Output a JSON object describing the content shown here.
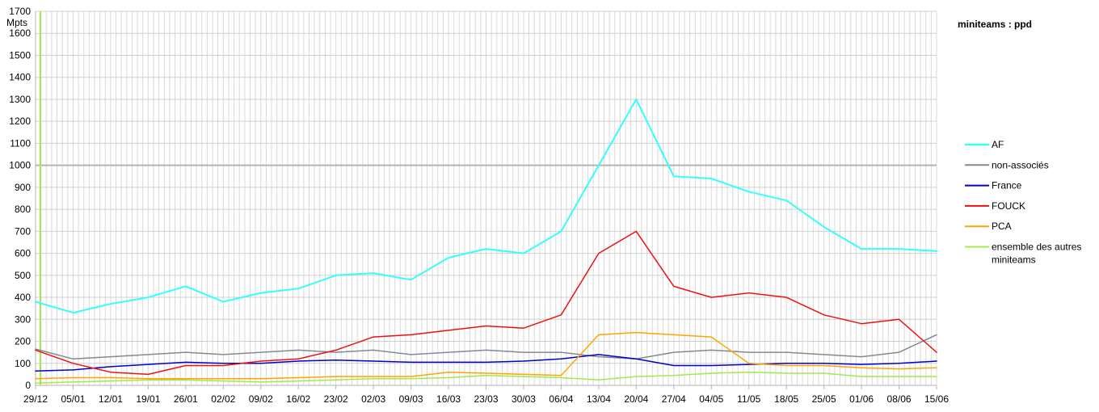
{
  "chart_data": {
    "type": "line",
    "title": "miniteams : ppd",
    "ylabel": "Mpts",
    "ylim": [
      0,
      1700
    ],
    "yticks": [
      0,
      100,
      200,
      300,
      400,
      500,
      600,
      700,
      800,
      900,
      1000,
      1100,
      1200,
      1300,
      1400,
      1500,
      1600,
      1700
    ],
    "x_tick_labels": [
      "29/12",
      "05/01",
      "12/01",
      "19/01",
      "26/01",
      "02/02",
      "09/02",
      "16/02",
      "23/02",
      "02/03",
      "09/03",
      "16/03",
      "23/03",
      "30/03",
      "06/04",
      "13/04",
      "20/04",
      "27/04",
      "04/05",
      "11/05",
      "18/05",
      "25/05",
      "01/06",
      "08/06",
      "15/06"
    ],
    "grid": true,
    "legend_position": "right",
    "reference_line_y": 1000,
    "series": [
      {
        "name": "AF",
        "color": "#33ffff",
        "width": 2,
        "weekly": [
          380,
          330,
          370,
          400,
          450,
          380,
          420,
          440,
          500,
          510,
          480,
          580,
          620,
          600,
          700,
          1000,
          1300,
          950,
          940,
          880,
          840,
          720,
          620,
          620,
          610
        ]
      },
      {
        "name": "non-associés",
        "color": "#808a94",
        "width": 1.5,
        "weekly": [
          165,
          120,
          130,
          140,
          150,
          140,
          150,
          160,
          150,
          160,
          140,
          150,
          160,
          150,
          150,
          130,
          120,
          150,
          160,
          150,
          150,
          140,
          130,
          150,
          230
        ]
      },
      {
        "name": "France",
        "color": "#0000cc",
        "width": 1.5,
        "weekly": [
          65,
          70,
          85,
          95,
          105,
          100,
          100,
          110,
          115,
          110,
          105,
          105,
          105,
          110,
          120,
          140,
          120,
          90,
          90,
          95,
          100,
          100,
          95,
          100,
          110
        ]
      },
      {
        "name": "FOUCK",
        "color": "#ee1111",
        "width": 1.5,
        "weekly": [
          160,
          100,
          60,
          50,
          90,
          90,
          110,
          120,
          160,
          220,
          230,
          250,
          270,
          260,
          320,
          600,
          700,
          450,
          400,
          420,
          400,
          320,
          280,
          300,
          150
        ]
      },
      {
        "name": "PCA",
        "color": "#ffa500",
        "width": 1.5,
        "weekly": [
          30,
          35,
          35,
          30,
          30,
          30,
          30,
          35,
          40,
          40,
          40,
          60,
          55,
          50,
          45,
          230,
          240,
          230,
          220,
          100,
          90,
          90,
          80,
          75,
          80
        ]
      },
      {
        "name": "ensemble des autres miniteams",
        "color": "#a4e84a",
        "width": 1.5,
        "weekly": [
          10,
          15,
          20,
          25,
          25,
          20,
          15,
          20,
          25,
          30,
          30,
          35,
          45,
          40,
          35,
          25,
          40,
          45,
          55,
          60,
          55,
          55,
          40,
          40,
          40
        ]
      }
    ],
    "legend": [
      {
        "line1": "AF",
        "line2": ""
      },
      {
        "line1": "non-associés",
        "line2": ""
      },
      {
        "line1": "France",
        "line2": ""
      },
      {
        "line1": "FOUCK",
        "line2": ""
      },
      {
        "line1": "PCA",
        "line2": ""
      },
      {
        "line1": "ensemble des autres",
        "line2": "miniteams"
      }
    ]
  }
}
